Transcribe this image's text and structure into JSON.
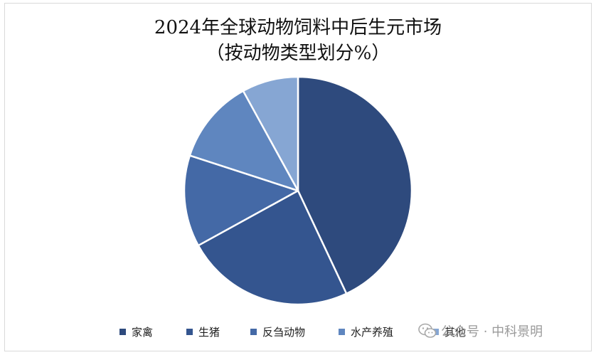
{
  "chart_data": {
    "type": "pie",
    "title_line1": "2024年全球动物饲料中后生元市场",
    "title_line2": "（按动物类型划分%）",
    "series": [
      {
        "label": "家禽",
        "value": 43,
        "color": "#2e4a7d"
      },
      {
        "label": "生猪",
        "value": 24,
        "color": "#34558f"
      },
      {
        "label": "反刍动物",
        "value": 13,
        "color": "#4469a6"
      },
      {
        "label": "水产养殖",
        "value": 12,
        "color": "#5f86bf"
      },
      {
        "label": "其他",
        "value": 8,
        "color": "#86a6d3"
      }
    ],
    "legend_position": "bottom",
    "start_angle_deg": 0,
    "direction": "clockwise"
  },
  "watermark": {
    "text": "公众号 · 中科景明",
    "icon": "wechat-icon"
  }
}
